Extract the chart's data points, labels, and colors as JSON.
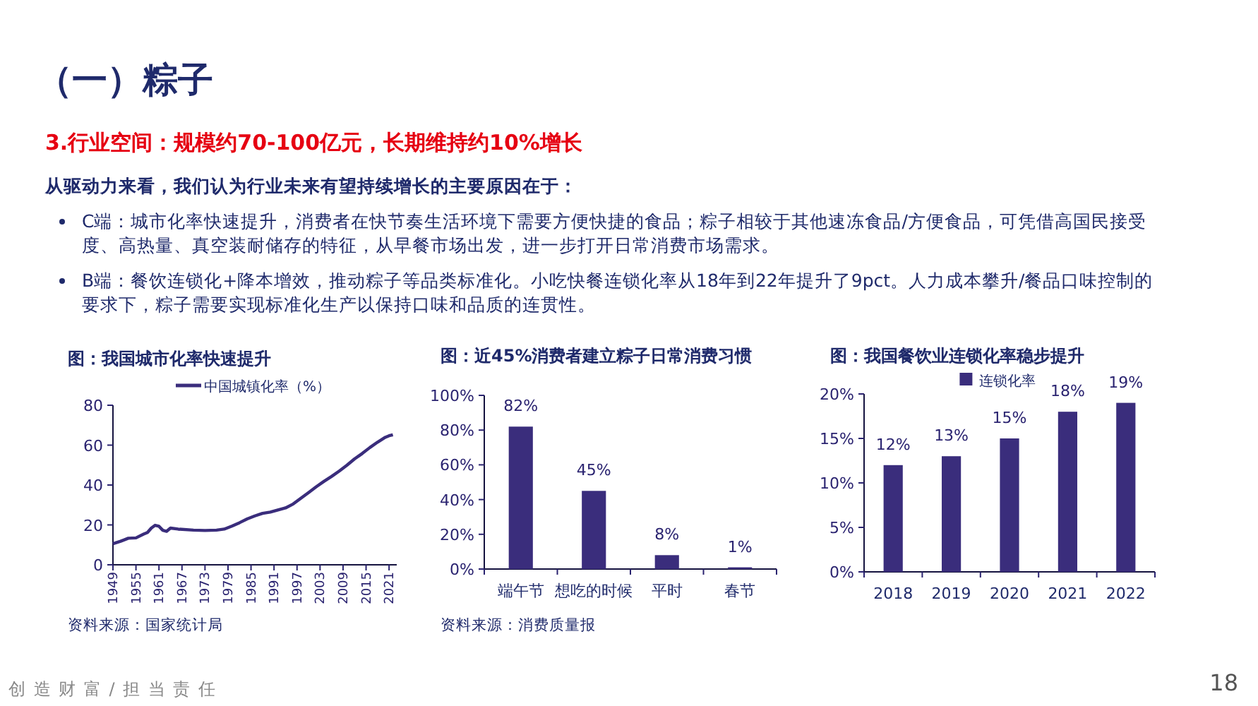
{
  "chart_data": [
    {
      "type": "other",
      "title": "（一）粽子",
      "subtitle": "3.行业空间：规模约70-100亿元，长期维持约10%增长",
      "annotations": [
        "从驱动力来看，我们认为行业未来有望持续增长的主要原因在于：",
        "C端：城市化率快速提升，消费者在快节奏生活环境下需要方便快捷的食品；粽子相较于其他速冻食品/方便食品，可凭借高国民接受度、高热量、真空装耐储存的特征，从早餐市场出发，进一步打开日常消费市场需求。",
        "B端：餐饮连锁化+降本增效，推动粽子等品类标准化。小吃快餐连锁化率从18年到22年提升了9pct。人力成本攀升/餐品口味控制的要求下，粽子需要实现标准化生产以保持口味和品质的连贯性。",
        "创 造 财 富 / 担 当 责 任",
        "18"
      ]
    },
    {
      "type": "line",
      "title": "图：我国城市化率快速提升",
      "annotations": [
        "资料来源：国家统计局"
      ],
      "legend": "top",
      "xlim": [
        1949,
        2023
      ],
      "ylim": [
        0,
        80
      ],
      "yticks": [
        0,
        20,
        40,
        60,
        80
      ],
      "xticks": [
        1949,
        1955,
        1961,
        1967,
        1973,
        1979,
        1985,
        1991,
        1997,
        2003,
        2009,
        2015,
        2021
      ],
      "x": [
        1949,
        1951,
        1953,
        1955,
        1957,
        1958,
        1959,
        1960,
        1961,
        1962,
        1963,
        1964,
        1966,
        1970,
        1973,
        1976,
        1978,
        1980,
        1982,
        1984,
        1986,
        1988,
        1990,
        1992,
        1994,
        1996,
        1998,
        2000,
        2002,
        2004,
        2006,
        2008,
        2010,
        2012,
        2014,
        2016,
        2018,
        2020,
        2021,
        2022
      ],
      "series": [
        {
          "name": "中国城镇化率（%）",
          "color": "#3a2d7c",
          "values": [
            10.6,
            11.8,
            13.3,
            13.5,
            15.4,
            16.2,
            18.4,
            19.8,
            19.3,
            17.3,
            16.8,
            18.4,
            17.9,
            17.4,
            17.2,
            17.4,
            17.9,
            19.4,
            21.1,
            23.0,
            24.5,
            25.8,
            26.4,
            27.5,
            28.5,
            30.5,
            33.4,
            36.2,
            39.1,
            41.8,
            44.3,
            47.0,
            49.9,
            53.1,
            55.8,
            58.8,
            61.5,
            63.9,
            64.7,
            65.2
          ]
        }
      ]
    },
    {
      "type": "bar",
      "title": "图：近45%消费者建立粽子日常消费习惯",
      "annotations": [
        "资料来源：消费质量报"
      ],
      "categories": [
        "端午节",
        "想吃的时候",
        "平时",
        "春节"
      ],
      "values": [
        82,
        45,
        8,
        1
      ],
      "color": "#3a2d7c",
      "value_labels": [
        "82%",
        "45%",
        "8%",
        "1%"
      ],
      "ylim": [
        0,
        100
      ],
      "yticks": [
        {
          "value": 0,
          "label": "0%"
        },
        {
          "value": 20,
          "label": "20%"
        },
        {
          "value": 40,
          "label": "40%"
        },
        {
          "value": 60,
          "label": "60%"
        },
        {
          "value": 80,
          "label": "80%"
        },
        {
          "value": 100,
          "label": "100%"
        }
      ]
    },
    {
      "type": "bar",
      "title": "图：我国餐饮业连锁化率稳步提升",
      "legend": "top",
      "categories": [
        "2018",
        "2019",
        "2020",
        "2021",
        "2022"
      ],
      "series": [
        {
          "name": "连锁化率",
          "color": "#3a2d7c",
          "values": [
            12,
            13,
            15,
            18,
            19
          ]
        }
      ],
      "value_labels": [
        "12%",
        "13%",
        "15%",
        "18%",
        "19%"
      ],
      "ylim": [
        0,
        20
      ],
      "yticks": [
        {
          "value": 0,
          "label": "0%"
        },
        {
          "value": 5,
          "label": "5%"
        },
        {
          "value": 10,
          "label": "10%"
        },
        {
          "value": 15,
          "label": "15%"
        },
        {
          "value": 20,
          "label": "20%"
        }
      ]
    }
  ]
}
